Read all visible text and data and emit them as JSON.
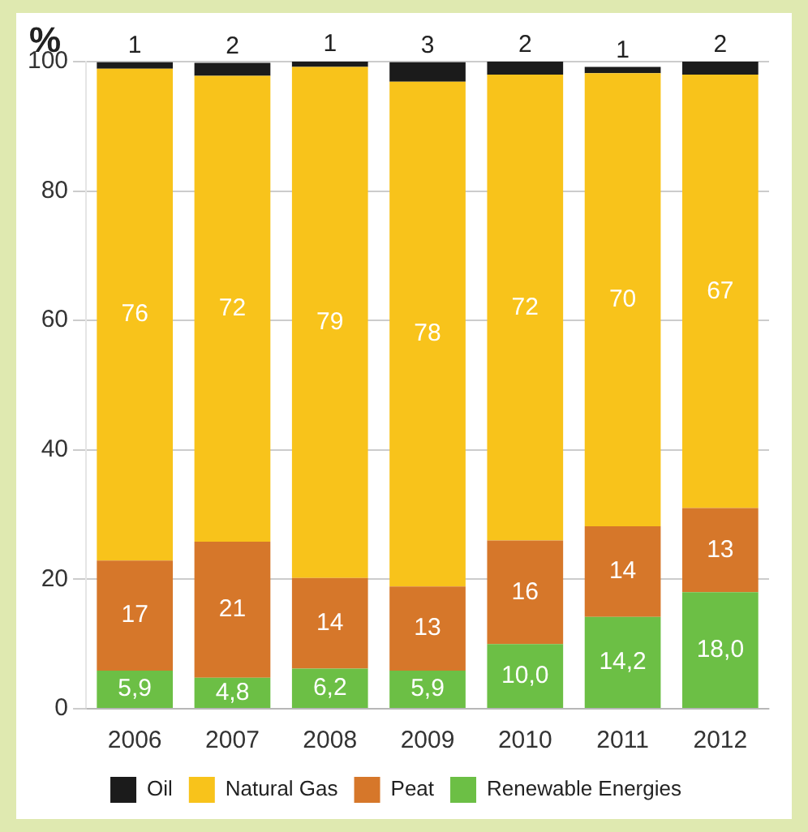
{
  "chart_data": {
    "type": "bar",
    "stacked": true,
    "ylabel": "%",
    "categories": [
      "2006",
      "2007",
      "2008",
      "2009",
      "2010",
      "2011",
      "2012"
    ],
    "ylim": [
      0,
      100
    ],
    "yticks": [
      0,
      20,
      40,
      60,
      80,
      100
    ],
    "grid": "y",
    "legend": "bottom",
    "series": [
      {
        "name": "Renewable Energies",
        "color": "#6cbf45",
        "values": [
          5.9,
          4.8,
          6.2,
          5.9,
          10.0,
          14.2,
          18.0
        ],
        "value_labels": [
          "5,9",
          "4,8",
          "6,2",
          "5,9",
          "10,0",
          "14,2",
          "18,0"
        ]
      },
      {
        "name": "Peat",
        "color": "#d6772a",
        "values": [
          17,
          21,
          14,
          13,
          16,
          14,
          13
        ],
        "value_labels": [
          "17",
          "21",
          "14",
          "13",
          "16",
          "14",
          "13"
        ]
      },
      {
        "name": "Natural Gas",
        "color": "#f8c31b",
        "values": [
          76,
          72,
          79,
          78,
          72,
          70,
          67
        ],
        "value_labels": [
          "76",
          "72",
          "79",
          "78",
          "72",
          "70",
          "67"
        ]
      },
      {
        "name": "Oil",
        "color": "#1b1b1b",
        "values": [
          1,
          2,
          1,
          3,
          2,
          1,
          2
        ],
        "value_labels": [
          "1",
          "2",
          "1",
          "3",
          "2",
          "1",
          "2"
        ]
      }
    ]
  }
}
